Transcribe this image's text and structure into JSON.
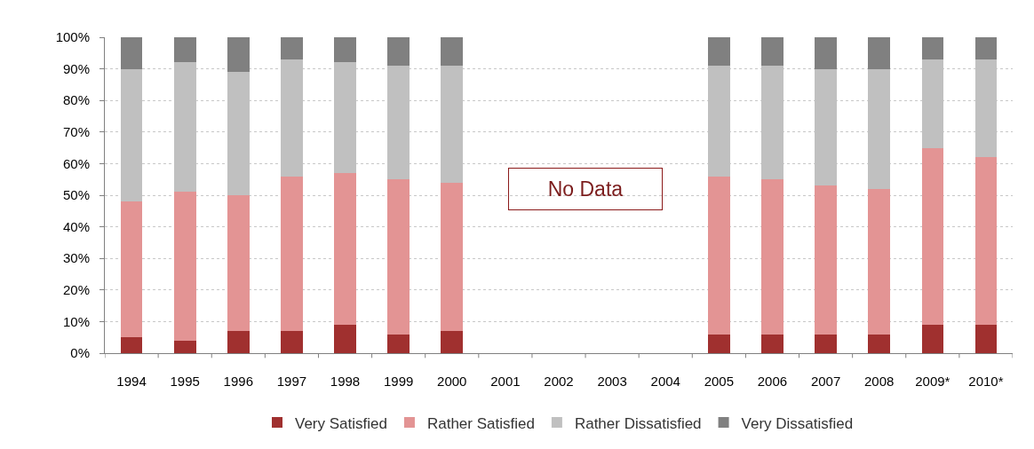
{
  "chart_data": {
    "type": "bar",
    "stacked": true,
    "categories": [
      "1994",
      "1995",
      "1996",
      "1997",
      "1998",
      "1999",
      "2000",
      "2001",
      "2002",
      "2003",
      "2004",
      "2005",
      "2006",
      "2007",
      "2008",
      "2009*",
      "2010*"
    ],
    "series": [
      {
        "name": "Very Satisfied",
        "color": "#a0302f",
        "values": [
          5,
          4,
          7,
          7,
          9,
          6,
          7,
          null,
          null,
          null,
          null,
          6,
          6,
          6,
          6,
          9,
          9
        ]
      },
      {
        "name": "Rather Satisfied",
        "color": "#e39494",
        "values": [
          43,
          47,
          43,
          49,
          48,
          49,
          47,
          null,
          null,
          null,
          null,
          50,
          49,
          47,
          46,
          56,
          53
        ]
      },
      {
        "name": "Rather Dissatisfied",
        "color": "#c0c0c0",
        "values": [
          42,
          41,
          39,
          37,
          35,
          36,
          37,
          null,
          null,
          null,
          null,
          35,
          36,
          37,
          38,
          28,
          31
        ]
      },
      {
        "name": "Very Dissatisfied",
        "color": "#808080",
        "values": [
          10,
          8,
          11,
          7,
          8,
          9,
          9,
          null,
          null,
          null,
          null,
          9,
          9,
          10,
          10,
          7,
          7
        ]
      }
    ],
    "ylim": [
      0,
      100
    ],
    "yticks": [
      {
        "value": 0,
        "label": "0%"
      },
      {
        "value": 10,
        "label": "10%"
      },
      {
        "value": 20,
        "label": "20%"
      },
      {
        "value": 30,
        "label": "30%"
      },
      {
        "value": 40,
        "label": "40%"
      },
      {
        "value": 50,
        "label": "50%"
      },
      {
        "value": 60,
        "label": "60%"
      },
      {
        "value": 70,
        "label": "70%"
      },
      {
        "value": 80,
        "label": "80%"
      },
      {
        "value": 90,
        "label": "90%"
      },
      {
        "value": 100,
        "label": "100%"
      }
    ],
    "annotations": [
      "No Data"
    ],
    "grid": "y",
    "legend": "bottom"
  }
}
